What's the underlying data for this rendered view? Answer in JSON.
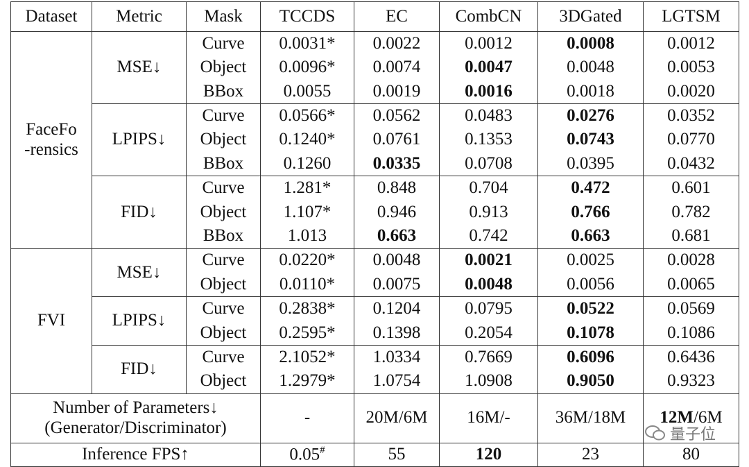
{
  "table": {
    "columns": [
      "Dataset",
      "Metric",
      "Mask",
      "TCCDS",
      "EC",
      "CombCN",
      "3DGated",
      "LGTSM"
    ],
    "groups": [
      {
        "dataset_lines": [
          "FaceFo",
          "-rensics"
        ],
        "metrics": [
          {
            "name": "MSE↓",
            "rows": [
              {
                "mask": "Curve",
                "values": [
                  "0.0031*",
                  "0.0022",
                  "0.0012",
                  {
                    "text": "0.0008",
                    "bold": true
                  },
                  "0.0012"
                ]
              },
              {
                "mask": "Object",
                "values": [
                  "0.0096*",
                  "0.0074",
                  {
                    "text": "0.0047",
                    "bold": true
                  },
                  "0.0048",
                  "0.0053"
                ]
              },
              {
                "mask": "BBox",
                "values": [
                  "0.0055",
                  "0.0019",
                  {
                    "text": "0.0016",
                    "bold": true
                  },
                  "0.0018",
                  "0.0020"
                ]
              }
            ]
          },
          {
            "name": "LPIPS↓",
            "rows": [
              {
                "mask": "Curve",
                "values": [
                  "0.0566*",
                  "0.0562",
                  "0.0483",
                  {
                    "text": "0.0276",
                    "bold": true
                  },
                  "0.0352"
                ]
              },
              {
                "mask": "Object",
                "values": [
                  "0.1240*",
                  "0.0761",
                  "0.1353",
                  {
                    "text": "0.0743",
                    "bold": true
                  },
                  "0.0770"
                ]
              },
              {
                "mask": "BBox",
                "values": [
                  "0.1260",
                  {
                    "text": "0.0335",
                    "bold": true
                  },
                  "0.0708",
                  "0.0395",
                  "0.0432"
                ]
              }
            ]
          },
          {
            "name": "FID↓",
            "rows": [
              {
                "mask": "Curve",
                "values": [
                  "1.281*",
                  "0.848",
                  "0.704",
                  {
                    "text": "0.472",
                    "bold": true
                  },
                  "0.601"
                ]
              },
              {
                "mask": "Object",
                "values": [
                  "1.107*",
                  "0.946",
                  "0.913",
                  {
                    "text": "0.766",
                    "bold": true
                  },
                  "0.782"
                ]
              },
              {
                "mask": "BBox",
                "values": [
                  "1.013",
                  {
                    "text": "0.663",
                    "bold": true
                  },
                  "0.742",
                  {
                    "text": "0.663",
                    "bold": true
                  },
                  "0.681"
                ]
              }
            ]
          }
        ]
      },
      {
        "dataset_lines": [
          "FVI"
        ],
        "metrics": [
          {
            "name": "MSE↓",
            "rows": [
              {
                "mask": "Curve",
                "values": [
                  "0.0220*",
                  "0.0048",
                  {
                    "text": "0.0021",
                    "bold": true
                  },
                  "0.0025",
                  "0.0028"
                ]
              },
              {
                "mask": "Object",
                "values": [
                  "0.0110*",
                  "0.0075",
                  {
                    "text": "0.0048",
                    "bold": true
                  },
                  "0.0056",
                  "0.0065"
                ]
              }
            ]
          },
          {
            "name": "LPIPS↓",
            "rows": [
              {
                "mask": "Curve",
                "values": [
                  "0.2838*",
                  "0.1204",
                  "0.0795",
                  {
                    "text": "0.0522",
                    "bold": true
                  },
                  "0.0569"
                ]
              },
              {
                "mask": "Object",
                "values": [
                  "0.2595*",
                  "0.1398",
                  "0.2054",
                  {
                    "text": "0.1078",
                    "bold": true
                  },
                  "0.1086"
                ]
              }
            ]
          },
          {
            "name": "FID↓",
            "rows": [
              {
                "mask": "Curve",
                "values": [
                  "2.1052*",
                  "1.0334",
                  "0.7669",
                  {
                    "text": "0.6096",
                    "bold": true
                  },
                  "0.6436"
                ]
              },
              {
                "mask": "Object",
                "values": [
                  "1.2979*",
                  "1.0754",
                  "1.0908",
                  {
                    "text": "0.9050",
                    "bold": true
                  },
                  "0.9323"
                ]
              }
            ]
          }
        ]
      }
    ],
    "footer": [
      {
        "label_lines": [
          "Number of Parameters↓",
          "(Generator/Discriminator)"
        ],
        "values": [
          "-",
          "20M/6M",
          "16M/-",
          "36M/18M",
          {
            "parts": [
              {
                "text": "12M",
                "bold": true
              },
              {
                "text": "/6M"
              }
            ]
          }
        ]
      },
      {
        "label_lines": [
          "Inference FPS↑"
        ],
        "values": [
          {
            "parts": [
              {
                "text": "0.05"
              },
              {
                "text": "#",
                "sup": true
              }
            ]
          },
          "55",
          {
            "text": "120",
            "bold": true
          },
          "23",
          "80"
        ]
      }
    ]
  },
  "watermark": "量子位"
}
